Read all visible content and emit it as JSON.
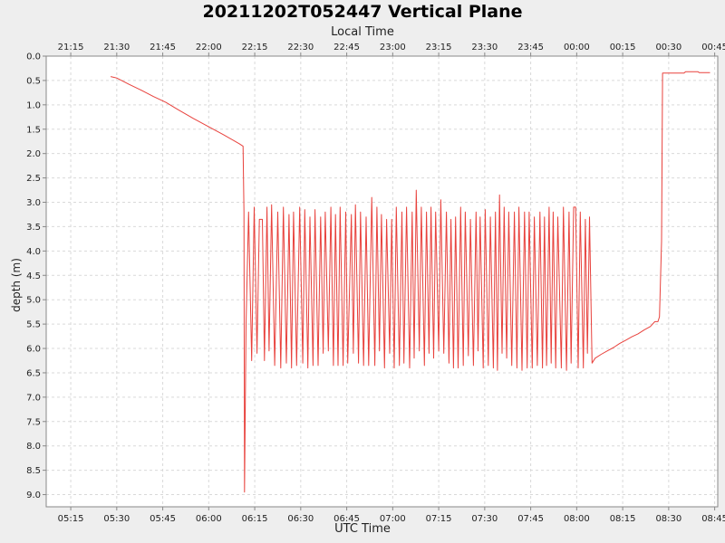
{
  "chart_data": {
    "type": "line",
    "title": "20211202T052447 Vertical Plane",
    "xlabel": "UTC Time",
    "x2label": "Local Time",
    "ylabel": "depth (m)",
    "y_inverted": true,
    "ylim": [
      0.0,
      9.25
    ],
    "y_ticks": [
      "0.0",
      "0.5",
      "1.0",
      "1.5",
      "2.0",
      "2.5",
      "3.0",
      "3.5",
      "4.0",
      "4.5",
      "5.0",
      "5.5",
      "6.0",
      "6.5",
      "7.0",
      "7.5",
      "8.0",
      "8.5",
      "9.0"
    ],
    "xlim": [
      "05:07",
      "08:46"
    ],
    "x_ticks_utc": [
      "05:15",
      "05:30",
      "05:45",
      "06:00",
      "06:15",
      "06:30",
      "06:45",
      "07:00",
      "07:15",
      "07:30",
      "07:45",
      "08:00",
      "08:15",
      "08:30",
      "08:45"
    ],
    "x_ticks_local": [
      "21:15",
      "21:30",
      "21:45",
      "22:00",
      "22:15",
      "22:30",
      "22:45",
      "23:00",
      "23:15",
      "23:30",
      "23:45",
      "00:00",
      "00:15",
      "00:30",
      "00:45"
    ],
    "grid": true,
    "series": [
      {
        "color": "#e8413c",
        "points": [
          [
            "05:28:00",
            0.42
          ],
          [
            "05:30:00",
            0.45
          ],
          [
            "05:34:00",
            0.58
          ],
          [
            "05:38:00",
            0.7
          ],
          [
            "05:42:00",
            0.83
          ],
          [
            "05:46:00",
            0.95
          ],
          [
            "05:50:00",
            1.1
          ],
          [
            "05:55:00",
            1.28
          ],
          [
            "06:00:00",
            1.45
          ],
          [
            "06:05:00",
            1.62
          ],
          [
            "06:10:00",
            1.8
          ],
          [
            "06:11:12",
            1.85
          ],
          [
            "06:11:30",
            3.2
          ],
          [
            "06:11:40",
            8.95
          ],
          [
            "06:12:10",
            5.5
          ],
          [
            "06:13:00",
            3.2
          ],
          [
            "06:14:00",
            6.25
          ],
          [
            "06:14:50",
            3.1
          ],
          [
            "06:15:45",
            6.1
          ],
          [
            "06:16:30",
            3.35
          ],
          [
            "06:17:30",
            3.35
          ],
          [
            "06:18:10",
            6.25
          ],
          [
            "06:19:00",
            3.1
          ],
          [
            "06:19:40",
            6.05
          ],
          [
            "06:20:30",
            3.05
          ],
          [
            "06:21:30",
            6.35
          ],
          [
            "06:22:30",
            3.2
          ],
          [
            "06:23:30",
            6.4
          ],
          [
            "06:24:20",
            3.1
          ],
          [
            "06:25:20",
            6.3
          ],
          [
            "06:26:10",
            3.25
          ],
          [
            "06:27:00",
            6.4
          ],
          [
            "06:27:40",
            3.2
          ],
          [
            "06:28:40",
            6.35
          ],
          [
            "06:29:40",
            3.1
          ],
          [
            "06:30:40",
            6.3
          ],
          [
            "06:31:20",
            3.15
          ],
          [
            "06:32:20",
            6.4
          ],
          [
            "06:33:00",
            3.3
          ],
          [
            "06:34:00",
            6.35
          ],
          [
            "06:34:40",
            3.15
          ],
          [
            "06:35:40",
            6.35
          ],
          [
            "06:36:30",
            3.3
          ],
          [
            "06:37:20",
            6.1
          ],
          [
            "06:38:00",
            3.2
          ],
          [
            "06:39:00",
            6.05
          ],
          [
            "06:39:50",
            3.1
          ],
          [
            "06:40:40",
            6.35
          ],
          [
            "06:41:20",
            3.25
          ],
          [
            "06:42:10",
            6.35
          ],
          [
            "06:42:50",
            3.1
          ],
          [
            "06:43:50",
            6.35
          ],
          [
            "06:44:40",
            3.2
          ],
          [
            "06:45:20",
            6.3
          ],
          [
            "06:46:30",
            3.25
          ],
          [
            "06:47:10",
            6.1
          ],
          [
            "06:47:50",
            3.05
          ],
          [
            "06:48:50",
            6.3
          ],
          [
            "06:49:30",
            3.2
          ],
          [
            "06:50:30",
            6.35
          ],
          [
            "06:51:20",
            3.3
          ],
          [
            "06:52:10",
            6.35
          ],
          [
            "06:53:10",
            2.9
          ],
          [
            "06:54:10",
            6.35
          ],
          [
            "06:54:50",
            3.1
          ],
          [
            "06:55:40",
            6.05
          ],
          [
            "06:56:20",
            3.25
          ],
          [
            "06:57:20",
            6.4
          ],
          [
            "06:58:00",
            3.35
          ],
          [
            "06:59:00",
            6.1
          ],
          [
            "06:59:40",
            3.35
          ],
          [
            "07:00:30",
            6.4
          ],
          [
            "07:01:10",
            3.1
          ],
          [
            "07:02:10",
            6.35
          ],
          [
            "07:03:00",
            3.2
          ],
          [
            "07:03:40",
            6.3
          ],
          [
            "07:04:30",
            3.1
          ],
          [
            "07:05:30",
            6.4
          ],
          [
            "07:06:20",
            3.2
          ],
          [
            "07:07:00",
            6.2
          ],
          [
            "07:07:40",
            2.75
          ],
          [
            "07:08:40",
            6.05
          ],
          [
            "07:09:20",
            3.1
          ],
          [
            "07:10:20",
            6.35
          ],
          [
            "07:11:00",
            3.2
          ],
          [
            "07:11:50",
            6.1
          ],
          [
            "07:12:30",
            3.1
          ],
          [
            "07:13:20",
            6.2
          ],
          [
            "07:14:00",
            3.2
          ],
          [
            "07:15:00",
            6.05
          ],
          [
            "07:15:40",
            2.95
          ],
          [
            "07:16:40",
            6.1
          ],
          [
            "07:17:30",
            3.2
          ],
          [
            "07:18:20",
            6.3
          ],
          [
            "07:19:00",
            3.35
          ],
          [
            "07:19:50",
            6.4
          ],
          [
            "07:20:30",
            3.3
          ],
          [
            "07:21:20",
            6.4
          ],
          [
            "07:22:10",
            3.1
          ],
          [
            "07:23:00",
            6.35
          ],
          [
            "07:23:40",
            3.2
          ],
          [
            "07:24:40",
            6.15
          ],
          [
            "07:25:20",
            3.35
          ],
          [
            "07:26:20",
            6.35
          ],
          [
            "07:27:10",
            3.2
          ],
          [
            "07:27:50",
            6.05
          ],
          [
            "07:28:30",
            3.3
          ],
          [
            "07:29:30",
            6.4
          ],
          [
            "07:30:10",
            3.15
          ],
          [
            "07:31:10",
            6.35
          ],
          [
            "07:31:50",
            3.3
          ],
          [
            "07:32:50",
            6.4
          ],
          [
            "07:33:30",
            3.2
          ],
          [
            "07:34:10",
            6.45
          ],
          [
            "07:34:50",
            2.85
          ],
          [
            "07:35:40",
            6.1
          ],
          [
            "07:36:20",
            3.1
          ],
          [
            "07:37:10",
            6.2
          ],
          [
            "07:37:50",
            3.2
          ],
          [
            "07:38:50",
            6.35
          ],
          [
            "07:39:40",
            3.2
          ],
          [
            "07:40:30",
            6.4
          ],
          [
            "07:41:10",
            3.1
          ],
          [
            "07:42:10",
            6.45
          ],
          [
            "07:43:00",
            3.2
          ],
          [
            "07:43:50",
            6.4
          ],
          [
            "07:44:30",
            3.2
          ],
          [
            "07:45:30",
            6.4
          ],
          [
            "07:46:10",
            3.3
          ],
          [
            "07:47:10",
            6.35
          ],
          [
            "07:48:00",
            3.2
          ],
          [
            "07:48:50",
            6.4
          ],
          [
            "07:49:30",
            3.3
          ],
          [
            "07:50:10",
            6.35
          ],
          [
            "07:51:00",
            3.1
          ],
          [
            "07:51:40",
            6.3
          ],
          [
            "07:52:20",
            3.2
          ],
          [
            "07:53:10",
            6.4
          ],
          [
            "07:53:50",
            3.3
          ],
          [
            "07:55:00",
            6.4
          ],
          [
            "07:55:40",
            3.1
          ],
          [
            "07:56:40",
            6.45
          ],
          [
            "07:57:30",
            3.2
          ],
          [
            "07:58:10",
            6.3
          ],
          [
            "07:59:00",
            3.1
          ],
          [
            "07:59:40",
            3.1
          ],
          [
            "08:00:30",
            6.4
          ],
          [
            "08:01:10",
            3.2
          ],
          [
            "08:02:10",
            6.4
          ],
          [
            "08:02:50",
            3.35
          ],
          [
            "08:03:30",
            6.1
          ],
          [
            "08:04:10",
            3.3
          ],
          [
            "08:05:00",
            6.3
          ],
          [
            "08:06:00",
            6.2
          ],
          [
            "08:08:00",
            6.12
          ],
          [
            "08:10:00",
            6.05
          ],
          [
            "08:12:00",
            5.98
          ],
          [
            "08:14:00",
            5.9
          ],
          [
            "08:16:00",
            5.83
          ],
          [
            "08:18:00",
            5.76
          ],
          [
            "08:20:00",
            5.7
          ],
          [
            "08:22:00",
            5.62
          ],
          [
            "08:24:00",
            5.55
          ],
          [
            "08:25:30",
            5.45
          ],
          [
            "08:26:30",
            5.45
          ],
          [
            "08:27:00",
            5.35
          ],
          [
            "08:27:40",
            3.8
          ],
          [
            "08:28:00",
            0.35
          ],
          [
            "08:35:00",
            0.35
          ],
          [
            "08:35:30",
            0.32
          ],
          [
            "08:39:30",
            0.32
          ],
          [
            "08:40:00",
            0.34
          ],
          [
            "08:43:30",
            0.34
          ]
        ]
      }
    ]
  }
}
